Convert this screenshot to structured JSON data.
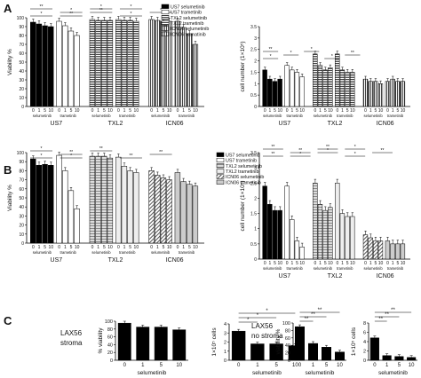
{
  "panels": {
    "A": {
      "label": "A",
      "viability": {
        "ylabel": "Viability %",
        "ylim": [
          0,
          100
        ],
        "yticks": [
          0,
          10,
          20,
          30,
          40,
          50,
          60,
          70,
          80,
          90,
          100
        ],
        "legend": [
          "US7 selumetinib",
          "US7 trametinib",
          "TXL2 selumetinib",
          "TXL2 trametinib",
          "ICN06 selumetinib",
          "ICN06 tramatinib"
        ],
        "dose_labels": [
          "0",
          "1",
          "5",
          "10"
        ],
        "drug_labels": [
          "selumetinib",
          "trametinib"
        ],
        "groups": [
          {
            "name": "US7",
            "selumetinib": [
              95,
              93,
              91,
              90
            ],
            "trametinib": [
              96,
              91,
              85,
              80
            ]
          },
          {
            "name": "TXL2",
            "selumetinib": [
              98,
              97,
              97,
              97
            ],
            "trametinib": [
              98,
              97,
              97,
              96
            ]
          },
          {
            "name": "ICN06",
            "selumetinib": [
              98,
              97,
              96,
              96
            ],
            "trametinib": [
              96,
              89,
              82,
              70
            ]
          }
        ],
        "sig": [
          "*",
          "*",
          "*",
          "*",
          "*",
          "**",
          "**",
          "**",
          "*"
        ]
      },
      "cells": {
        "ylabel": "cell number (1×10⁵)",
        "ylim": [
          0,
          3.5
        ],
        "yticks": [
          "0",
          "0.5",
          "1",
          "1.5",
          "2",
          "2.5",
          "3",
          "3.5"
        ],
        "dose_labels": [
          "0",
          "1",
          "5",
          "10"
        ],
        "drug_labels": [
          "selumetinib",
          "trametinib"
        ],
        "groups": [
          {
            "name": "US7",
            "selumetinib": [
              1.6,
              1.2,
              1.1,
              1.2
            ],
            "trametinib": [
              1.8,
              1.6,
              1.5,
              1.3
            ]
          },
          {
            "name": "TXL2",
            "selumetinib": [
              2.3,
              1.8,
              1.6,
              1.7
            ],
            "trametinib": [
              2.3,
              1.6,
              1.5,
              1.5
            ]
          },
          {
            "name": "ICN06",
            "selumetinib": [
              1.2,
              1.1,
              1.1,
              1.0
            ],
            "trametinib": [
              1.1,
              1.2,
              1.1,
              1.1
            ]
          }
        ],
        "sig": [
          "*",
          "*",
          "*",
          "*",
          "**",
          "**"
        ]
      }
    },
    "B": {
      "label": "B",
      "viability": {
        "ylabel": "Viability %",
        "ylim": [
          0,
          100
        ],
        "yticks": [
          0,
          10,
          20,
          30,
          40,
          50,
          60,
          70,
          80,
          90,
          100
        ],
        "legend": [
          "US7 selumetinib",
          "US7 trametinib",
          "TXL2 selumetinib",
          "TXL2 trametinib",
          "ICN06 selumetinib",
          "ICN06 trametinib"
        ],
        "dose_labels": [
          "0",
          "1",
          "5",
          "10"
        ],
        "drug_labels": [
          "selumetinib",
          "trametinib"
        ],
        "groups": [
          {
            "name": "US7",
            "selumetinib": [
              93,
              86,
              87,
              86
            ],
            "trametinib": [
              97,
              80,
              58,
              38
            ]
          },
          {
            "name": "TXL2",
            "selumetinib": [
              96,
              96,
              96,
              94
            ],
            "trametinib": [
              95,
              85,
              80,
              78
            ]
          },
          {
            "name": "ICN06",
            "selumetinib": [
              80,
              75,
              72,
              70
            ],
            "trametinib": [
              78,
              68,
              65,
              63
            ]
          }
        ],
        "sig": [
          "*",
          "**",
          "**",
          "**",
          "**",
          "*",
          "*"
        ]
      },
      "cells": {
        "ylabel": "cell number (1×10⁵)",
        "ylim": [
          0,
          3.5
        ],
        "yticks": [
          "0",
          "0.5",
          "1",
          "1.5",
          "2",
          "2.5",
          "3",
          "3.5"
        ],
        "dose_labels": [
          "0",
          "1",
          "5",
          "10"
        ],
        "drug_labels": [
          "selumetinib",
          "trametinib"
        ],
        "groups": [
          {
            "name": "US7",
            "selumetinib": [
              2.4,
              1.8,
              1.6,
              1.6
            ],
            "trametinib": [
              2.4,
              1.3,
              0.6,
              0.4
            ]
          },
          {
            "name": "TXL2",
            "selumetinib": [
              2.5,
              1.8,
              1.6,
              1.7
            ],
            "trametinib": [
              2.5,
              1.5,
              1.4,
              1.4
            ]
          },
          {
            "name": "ICN06",
            "selumetinib": [
              0.8,
              0.7,
              0.6,
              0.6
            ],
            "trametinib": [
              0.6,
              0.5,
              0.5,
              0.5
            ]
          }
        ],
        "sig": [
          "**",
          "**",
          "**",
          "*",
          "**",
          "**",
          "*",
          "*",
          "*"
        ]
      }
    },
    "C": {
      "label": "C",
      "xlabel": "selumetinib",
      "stroma_title": "LAX56\nstroma",
      "nostroma_title": "LAX56\nno stroma",
      "dose_labels": [
        "0",
        "1",
        "5",
        "10"
      ],
      "viab_stroma": {
        "ylabel": "% viability",
        "ylim": [
          0,
          100
        ],
        "yticks": [
          "0",
          "20",
          "40",
          "60",
          "80",
          "100"
        ],
        "values": [
          95,
          85,
          85,
          78
        ]
      },
      "cells_stroma": {
        "ylabel": "1×10⁵ cells",
        "ylim": [
          0,
          4
        ],
        "yticks": [
          "0",
          "1",
          "2",
          "3",
          "4"
        ],
        "values": [
          3.2,
          1.8,
          1.8,
          1.6
        ],
        "sig": [
          "*",
          "*",
          "*"
        ]
      },
      "viab_nostroma": {
        "ylabel": "viability %",
        "ylim": [
          0,
          100
        ],
        "yticks": [
          "0",
          "20",
          "40",
          "60",
          "80",
          "100"
        ],
        "values": [
          90,
          45,
          35,
          22
        ],
        "sig": [
          "**",
          "**",
          "**"
        ]
      },
      "cells_nostroma": {
        "ylabel": "1×10⁵ cells",
        "ylim": [
          0,
          8
        ],
        "yticks": [
          "0",
          "2",
          "4",
          "6",
          "8"
        ],
        "values": [
          4.8,
          1.0,
          0.8,
          0.6
        ],
        "sig": [
          "**",
          "**",
          "**"
        ]
      }
    }
  },
  "chart_data": [
    {
      "type": "bar",
      "title": "",
      "ylabel": "Viability %",
      "ylim": [
        0,
        100
      ],
      "categories": [
        "0",
        "1",
        "5",
        "10"
      ],
      "series": [
        {
          "name": "US7 selumetinib",
          "values": [
            95,
            93,
            91,
            90
          ]
        },
        {
          "name": "US7 trametinib",
          "values": [
            96,
            91,
            85,
            80
          ]
        },
        {
          "name": "TXL2 selumetinib",
          "values": [
            98,
            97,
            97,
            97
          ]
        },
        {
          "name": "TXL2 trametinib",
          "values": [
            98,
            97,
            97,
            96
          ]
        },
        {
          "name": "ICN06 selumetinib",
          "values": [
            98,
            97,
            96,
            96
          ]
        },
        {
          "name": "ICN06 tramatinib",
          "values": [
            96,
            89,
            82,
            70
          ]
        }
      ]
    },
    {
      "type": "bar",
      "title": "",
      "ylabel": "cell number (1×10⁵)",
      "ylim": [
        0,
        3.5
      ],
      "categories": [
        "0",
        "1",
        "5",
        "10"
      ],
      "series": [
        {
          "values": [
            1.6,
            1.2,
            1.1,
            1.2
          ]
        },
        {
          "values": [
            1.8,
            1.6,
            1.5,
            1.3
          ]
        },
        {
          "values": [
            2.3,
            1.8,
            1.6,
            1.7
          ]
        },
        {
          "values": [
            2.3,
            1.6,
            1.5,
            1.5
          ]
        },
        {
          "values": [
            1.2,
            1.1,
            1.1,
            1.0
          ]
        },
        {
          "values": [
            1.1,
            1.2,
            1.1,
            1.1
          ]
        }
      ]
    },
    {
      "type": "bar",
      "title": "",
      "ylabel": "Viability %",
      "ylim": [
        0,
        100
      ],
      "categories": [
        "0",
        "1",
        "5",
        "10"
      ],
      "series": [
        {
          "name": "US7 selumetinib",
          "values": [
            93,
            86,
            87,
            86
          ]
        },
        {
          "name": "US7 trametinib",
          "values": [
            97,
            80,
            58,
            38
          ]
        },
        {
          "name": "TXL2 selumetinib",
          "values": [
            96,
            96,
            96,
            94
          ]
        },
        {
          "name": "TXL2 trametinib",
          "values": [
            95,
            85,
            80,
            78
          ]
        },
        {
          "name": "ICN06 selumetinib",
          "values": [
            80,
            75,
            72,
            70
          ]
        },
        {
          "name": "ICN06 trametinib",
          "values": [
            78,
            68,
            65,
            63
          ]
        }
      ]
    },
    {
      "type": "bar",
      "title": "",
      "ylabel": "cell number (1×10⁵)",
      "ylim": [
        0,
        3.5
      ],
      "categories": [
        "0",
        "1",
        "5",
        "10"
      ],
      "series": [
        {
          "values": [
            2.4,
            1.8,
            1.6,
            1.6
          ]
        },
        {
          "values": [
            2.4,
            1.3,
            0.6,
            0.4
          ]
        },
        {
          "values": [
            2.5,
            1.8,
            1.6,
            1.7
          ]
        },
        {
          "values": [
            2.5,
            1.5,
            1.4,
            1.4
          ]
        },
        {
          "values": [
            0.8,
            0.7,
            0.6,
            0.6
          ]
        },
        {
          "values": [
            0.6,
            0.5,
            0.5,
            0.5
          ]
        }
      ]
    },
    {
      "type": "bar",
      "title": "",
      "xlabel": "selumetinib",
      "ylabel": "% viability",
      "ylim": [
        0,
        100
      ],
      "categories": [
        "0",
        "1",
        "5",
        "10"
      ],
      "values": [
        95,
        85,
        85,
        78
      ]
    },
    {
      "type": "bar",
      "title": "",
      "xlabel": "selumetinib",
      "ylabel": "1×10⁵ cells",
      "ylim": [
        0,
        4
      ],
      "categories": [
        "0",
        "1",
        "5",
        "10"
      ],
      "values": [
        3.2,
        1.8,
        1.8,
        1.6
      ]
    },
    {
      "type": "bar",
      "title": "",
      "xlabel": "selumetinib",
      "ylabel": "viability %",
      "ylim": [
        0,
        100
      ],
      "categories": [
        "0",
        "1",
        "5",
        "10"
      ],
      "values": [
        90,
        45,
        35,
        22
      ]
    },
    {
      "type": "bar",
      "title": "",
      "xlabel": "selumetinib",
      "ylabel": "1×10⁵ cells",
      "ylim": [
        0,
        8
      ],
      "categories": [
        "0",
        "1",
        "5",
        "10"
      ],
      "values": [
        4.8,
        1.0,
        0.8,
        0.6
      ]
    }
  ]
}
